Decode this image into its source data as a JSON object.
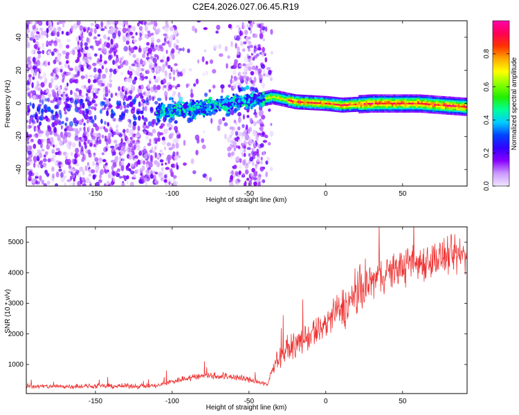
{
  "chart_data": [
    {
      "type": "heatmap",
      "title": "C2E4.2026.027.06.45.R19",
      "xlabel": "Height of straight line (km)",
      "ylabel": "Frequency (Hz)",
      "xlim": [
        -195,
        92
      ],
      "ylim": [
        -50,
        50
      ],
      "x_ticks": [
        -150,
        -100,
        -50,
        0,
        50
      ],
      "y_ticks": [
        -40,
        -20,
        0,
        20,
        40
      ],
      "colorbar": {
        "label": "Normalized spectral amplitude",
        "range": [
          0,
          1
        ],
        "ticks": [
          "0.0",
          "0.2",
          "0.4",
          "0.6",
          "0.8"
        ],
        "colors": [
          "#f0e6ff",
          "#cc99ff",
          "#8800ff",
          "#3300ff",
          "#0044ff",
          "#00ccff",
          "#00ff99",
          "#22ee00",
          "#88ff00",
          "#ffff00",
          "#ffaa00",
          "#ff3300",
          "#ff0055",
          "#ff00aa"
        ]
      },
      "ridge": {
        "description_points_x": [
          -105,
          -80,
          -60,
          -45,
          -35,
          -20,
          0,
          10,
          30,
          60,
          90
        ],
        "description_points_y": [
          -5,
          -3,
          1,
          2,
          4,
          1,
          0,
          -1,
          0,
          0,
          -2
        ]
      }
    },
    {
      "type": "line",
      "title": "",
      "xlabel": "Height of straight line (km)",
      "ylabel": "SNR (10 * v/v)",
      "xlim": [
        -195,
        92
      ],
      "ylim": [
        50,
        5500
      ],
      "x_ticks": [
        -150,
        -100,
        -50,
        0,
        50
      ],
      "y_ticks": [
        1000,
        2000,
        3000,
        4000,
        5000
      ],
      "color": "#ee3333",
      "series_trend": {
        "x": [
          -195,
          -110,
          -100,
          -80,
          -60,
          -45,
          -38,
          -33,
          -25,
          -15,
          -5,
          5,
          15,
          25,
          35,
          50,
          70,
          92
        ],
        "y": [
          280,
          300,
          450,
          650,
          600,
          450,
          320,
          1100,
          1500,
          1800,
          2100,
          2600,
          3000,
          3500,
          3900,
          4200,
          4450,
          4600
        ]
      }
    }
  ]
}
